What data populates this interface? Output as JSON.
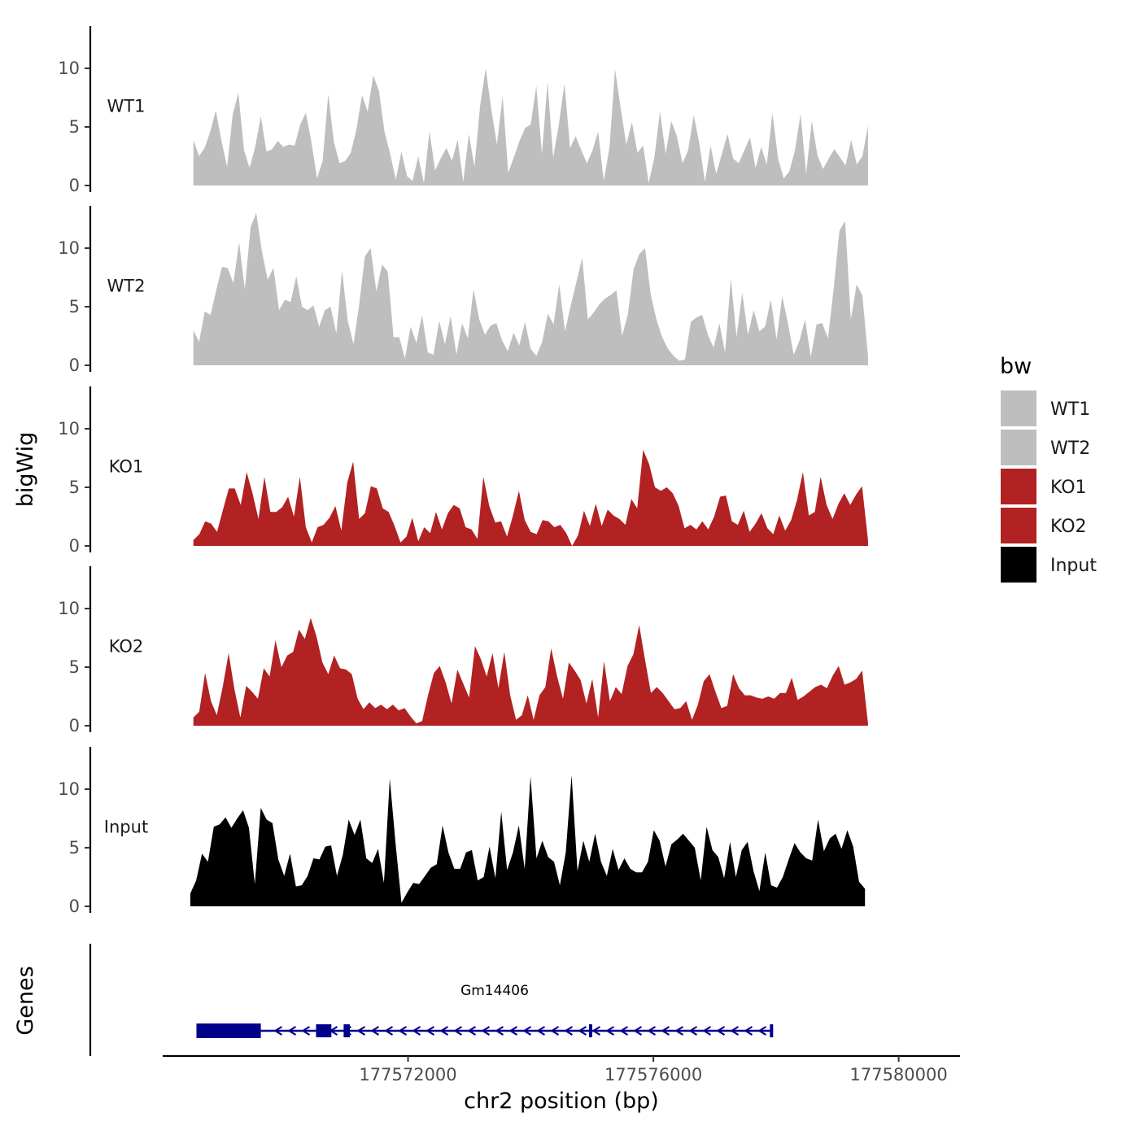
{
  "chart_data": {
    "type": "area",
    "title": "",
    "xlabel": "chr2 position (bp)",
    "ylabel": "bigWig",
    "genes_label": "Genes",
    "x_range": [
      177568000,
      177581000
    ],
    "x_ticks": [
      177572000,
      177576000,
      177580000
    ],
    "x_tick_labels": [
      "177572000",
      "177576000",
      "177580000"
    ],
    "ylim": [
      0,
      13.5
    ],
    "y_ticks": [
      0,
      5,
      10
    ],
    "y_tick_labels": [
      "0",
      "5",
      "10"
    ],
    "legend": {
      "title": "bw",
      "position": "right",
      "entries": [
        {
          "label": "WT1",
          "color": "#bebebe"
        },
        {
          "label": "WT2",
          "color": "#bebebe"
        },
        {
          "label": "KO1",
          "color": "#b22222"
        },
        {
          "label": "KO2",
          "color": "#b22222"
        },
        {
          "label": "Input",
          "color": "#000000"
        }
      ]
    },
    "series": [
      {
        "name": "WT1",
        "color": "#bebebe",
        "x_start": 177568500,
        "x_end": 177579500,
        "values": [
          3.9,
          2.5,
          3.2,
          4.6,
          6.4,
          3.8,
          1.6,
          6.1,
          7.9,
          3.0,
          1.5,
          3.3,
          5.9,
          2.9,
          3.1,
          3.8,
          3.3,
          3.5,
          3.4,
          5.2,
          6.2,
          3.7,
          0.6,
          2.1,
          7.8,
          3.7,
          1.9,
          2.1,
          2.8,
          4.8,
          7.7,
          6.3,
          9.4,
          8.1,
          4.6,
          2.7,
          0.5,
          2.9,
          0.8,
          0.4,
          2.5,
          0.2,
          4.6,
          1.3,
          2.3,
          3.2,
          2.1,
          3.9,
          0.3,
          4.4,
          1.6,
          6.8,
          10.0,
          6.5,
          3.5,
          7.6,
          1.1,
          2.4,
          3.8,
          4.9,
          5.2,
          8.5,
          2.7,
          8.8,
          2.4,
          5.2,
          8.7,
          3.2,
          4.2,
          3.0,
          1.9,
          3.0,
          4.6,
          0.4,
          3.2,
          9.9,
          6.6,
          3.5,
          5.4,
          2.8,
          3.4,
          0.2,
          2.4,
          6.3,
          2.7,
          5.5,
          4.2,
          1.9,
          3.0,
          6.0,
          3.6,
          0.3,
          3.4,
          1.0,
          2.7,
          4.4,
          2.3,
          1.9,
          3.0,
          4.1,
          1.5,
          3.3,
          1.8,
          6.2,
          2.3,
          0.6,
          1.2,
          3.0,
          6.1,
          1.0,
          5.5,
          2.6,
          1.4,
          2.3,
          3.1,
          2.4,
          1.7,
          3.9,
          1.8,
          2.5,
          5.1
        ]
      },
      {
        "name": "WT2",
        "color": "#bebebe",
        "x_start": 177568500,
        "x_end": 177579500,
        "values": [
          3.0,
          2.0,
          4.6,
          4.3,
          6.4,
          8.4,
          8.3,
          7.0,
          10.5,
          6.5,
          11.8,
          13.0,
          9.7,
          7.3,
          8.3,
          4.7,
          5.6,
          5.4,
          7.6,
          5.0,
          4.7,
          5.1,
          3.3,
          4.7,
          5.0,
          2.7,
          8.1,
          3.8,
          1.8,
          5.2,
          9.3,
          10.0,
          6.3,
          8.6,
          8.0,
          2.4,
          2.4,
          0.6,
          3.3,
          1.9,
          4.3,
          1.1,
          0.9,
          3.8,
          1.8,
          4.2,
          0.9,
          3.6,
          2.3,
          6.5,
          3.9,
          2.6,
          3.4,
          3.6,
          2.1,
          1.2,
          2.8,
          1.7,
          3.7,
          1.4,
          0.8,
          2.0,
          4.4,
          3.5,
          6.9,
          2.9,
          5.1,
          7.1,
          9.2,
          3.9,
          4.5,
          5.2,
          5.7,
          6.0,
          6.4,
          2.5,
          4.4,
          8.2,
          9.5,
          10.0,
          6.0,
          3.9,
          2.4,
          1.4,
          0.8,
          0.4,
          0.5,
          3.7,
          4.1,
          4.3,
          2.6,
          1.5,
          3.6,
          1.1,
          7.4,
          2.4,
          6.2,
          2.6,
          4.7,
          2.9,
          3.3,
          5.6,
          2.2,
          5.9,
          3.6,
          0.9,
          2.1,
          3.9,
          0.7,
          3.5,
          3.6,
          2.3,
          6.6,
          11.5,
          12.3,
          3.9,
          6.9,
          6.0,
          0.8
        ]
      },
      {
        "name": "KO1",
        "color": "#b22222",
        "x_start": 177568500,
        "x_end": 177579500,
        "values": [
          0.5,
          1.0,
          2.1,
          1.9,
          1.2,
          3.1,
          4.9,
          4.9,
          3.5,
          6.3,
          4.5,
          2.3,
          5.9,
          2.9,
          2.9,
          3.3,
          4.2,
          2.5,
          5.9,
          1.6,
          0.3,
          1.6,
          1.8,
          2.4,
          3.4,
          1.3,
          5.4,
          7.2,
          2.3,
          2.8,
          5.1,
          4.9,
          3.2,
          2.9,
          1.7,
          0.3,
          0.8,
          2.4,
          0.4,
          1.6,
          1.1,
          2.9,
          1.4,
          2.8,
          3.5,
          3.2,
          1.6,
          1.4,
          0.6,
          5.9,
          3.4,
          2.0,
          2.1,
          0.8,
          2.6,
          4.7,
          2.2,
          1.2,
          1.0,
          2.2,
          2.1,
          1.6,
          1.8,
          1.1,
          0.0,
          0.9,
          3.0,
          1.7,
          3.6,
          1.7,
          3.1,
          2.6,
          2.3,
          1.8,
          4.0,
          3.2,
          8.2,
          7.0,
          5.0,
          4.7,
          5.0,
          4.5,
          3.4,
          1.5,
          1.8,
          1.4,
          2.1,
          1.4,
          2.5,
          4.2,
          4.3,
          2.1,
          1.8,
          3.0,
          1.2,
          1.9,
          2.8,
          1.5,
          1.0,
          2.6,
          1.3,
          2.2,
          3.9,
          6.3,
          2.6,
          2.9,
          5.9,
          3.5,
          2.3,
          3.6,
          4.5,
          3.5,
          4.4,
          5.1,
          0.5
        ]
      },
      {
        "name": "KO2",
        "color": "#b22222",
        "x_start": 177568500,
        "x_end": 177579500,
        "values": [
          0.7,
          1.2,
          4.5,
          2.1,
          0.9,
          3.3,
          6.2,
          3.1,
          0.7,
          3.4,
          2.9,
          2.3,
          4.9,
          4.2,
          7.3,
          5.0,
          6.0,
          6.3,
          8.2,
          7.4,
          9.2,
          7.6,
          5.4,
          4.4,
          6.0,
          4.9,
          4.8,
          4.4,
          2.3,
          1.4,
          2.0,
          1.5,
          1.8,
          1.4,
          1.8,
          1.3,
          1.5,
          0.8,
          0.2,
          0.4,
          2.6,
          4.5,
          5.1,
          3.7,
          1.9,
          4.8,
          3.6,
          2.4,
          6.8,
          5.7,
          4.2,
          6.2,
          3.2,
          6.3,
          2.6,
          0.5,
          0.9,
          2.6,
          0.5,
          2.6,
          3.3,
          6.6,
          4.2,
          2.3,
          5.4,
          4.7,
          3.9,
          1.9,
          4.0,
          0.7,
          5.5,
          2.1,
          3.3,
          2.7,
          5.1,
          6.1,
          8.6,
          5.6,
          2.8,
          3.3,
          2.8,
          2.1,
          1.4,
          1.5,
          2.1,
          0.5,
          1.8,
          3.8,
          4.4,
          2.9,
          1.5,
          1.7,
          4.4,
          3.2,
          2.6,
          2.6,
          2.4,
          2.3,
          2.5,
          2.3,
          2.8,
          2.8,
          4.1,
          2.2,
          2.5,
          2.9,
          3.3,
          3.5,
          3.2,
          4.3,
          5.1,
          3.5,
          3.7,
          4.0,
          4.7,
          0.2
        ]
      },
      {
        "name": "Input",
        "color": "#000000",
        "x_start": 177568450,
        "x_end": 177579450,
        "values": [
          1.1,
          2.2,
          4.5,
          3.8,
          6.8,
          7.0,
          7.6,
          6.7,
          7.5,
          8.2,
          6.7,
          1.9,
          8.4,
          7.4,
          7.1,
          4.0,
          2.6,
          4.5,
          1.7,
          1.8,
          2.6,
          4.1,
          4.0,
          5.1,
          5.2,
          2.6,
          4.4,
          7.4,
          6.1,
          7.4,
          4.1,
          3.7,
          4.9,
          2.0,
          10.9,
          5.3,
          0.3,
          1.2,
          2.0,
          1.9,
          2.6,
          3.3,
          3.6,
          6.9,
          4.6,
          3.2,
          3.2,
          4.6,
          4.8,
          2.2,
          2.5,
          5.1,
          2.4,
          8.1,
          3.1,
          4.6,
          6.9,
          3.2,
          11.1,
          4.1,
          5.6,
          4.2,
          3.8,
          1.8,
          4.6,
          11.2,
          3.0,
          5.6,
          3.8,
          6.2,
          3.8,
          2.6,
          4.9,
          3.1,
          4.1,
          3.2,
          2.9,
          2.9,
          3.8,
          6.5,
          5.6,
          3.4,
          5.3,
          5.7,
          6.2,
          5.6,
          5.0,
          2.2,
          6.8,
          4.8,
          4.2,
          2.4,
          5.5,
          2.5,
          4.8,
          5.5,
          3.0,
          1.3,
          4.6,
          1.8,
          1.6,
          2.5,
          4.0,
          5.4,
          4.6,
          4.1,
          3.9,
          7.4,
          4.7,
          5.8,
          6.2,
          4.9,
          6.5,
          5.1,
          2.1,
          1.5
        ]
      }
    ],
    "gene": {
      "name": "Gm14406",
      "strand": "-",
      "start": 177568550,
      "end": 177577950,
      "exons": [
        [
          177568550,
          177569600
        ],
        [
          177570500,
          177570750
        ],
        [
          177570950,
          177571050
        ],
        [
          177574950,
          177575000
        ],
        [
          177577900,
          177577950
        ]
      ],
      "color": "#00008b"
    }
  }
}
